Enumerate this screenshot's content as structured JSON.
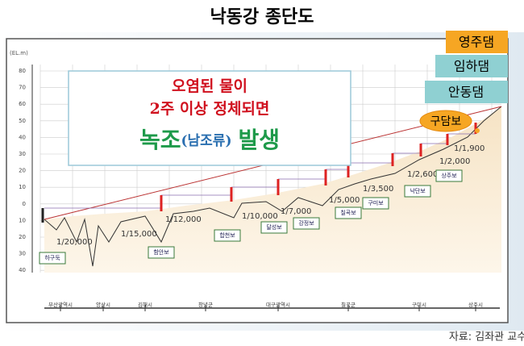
{
  "header": {
    "title": "낙동강 종단도"
  },
  "source": "자료: 김좌관 교수",
  "callout": {
    "line1": "오염된 물이",
    "line2": "2주 이상 정체되면",
    "line3": {
      "a": "녹조",
      "b": "(남조류)",
      "c": "발생"
    }
  },
  "dams": [
    "영주댐",
    "임하댐",
    "안동댐",
    "구담보"
  ],
  "axis": {
    "unit": "(EL.m)",
    "ticks": [
      "80",
      "70",
      "60",
      "50",
      "40",
      "30",
      "20",
      "10",
      "0",
      "10",
      "20",
      "30",
      "40"
    ]
  },
  "gradients": [
    "1/20,000",
    "1/15,000",
    "1/12,000",
    "1/10,000",
    "1/7,000",
    "1/5,000",
    "1/3,500",
    "1/2,600",
    "1/2,000",
    "1/1,900"
  ],
  "weirs": [
    "하구둑",
    "함안보",
    "합천보",
    "달성보",
    "강정보",
    "칠곡보",
    "구미보",
    "낙단보",
    "상주보"
  ],
  "places": [
    "부산광역시",
    "양산시",
    "김해시",
    "창녕군",
    "대구광역시",
    "칠곡군",
    "구미시",
    "상주시"
  ]
}
